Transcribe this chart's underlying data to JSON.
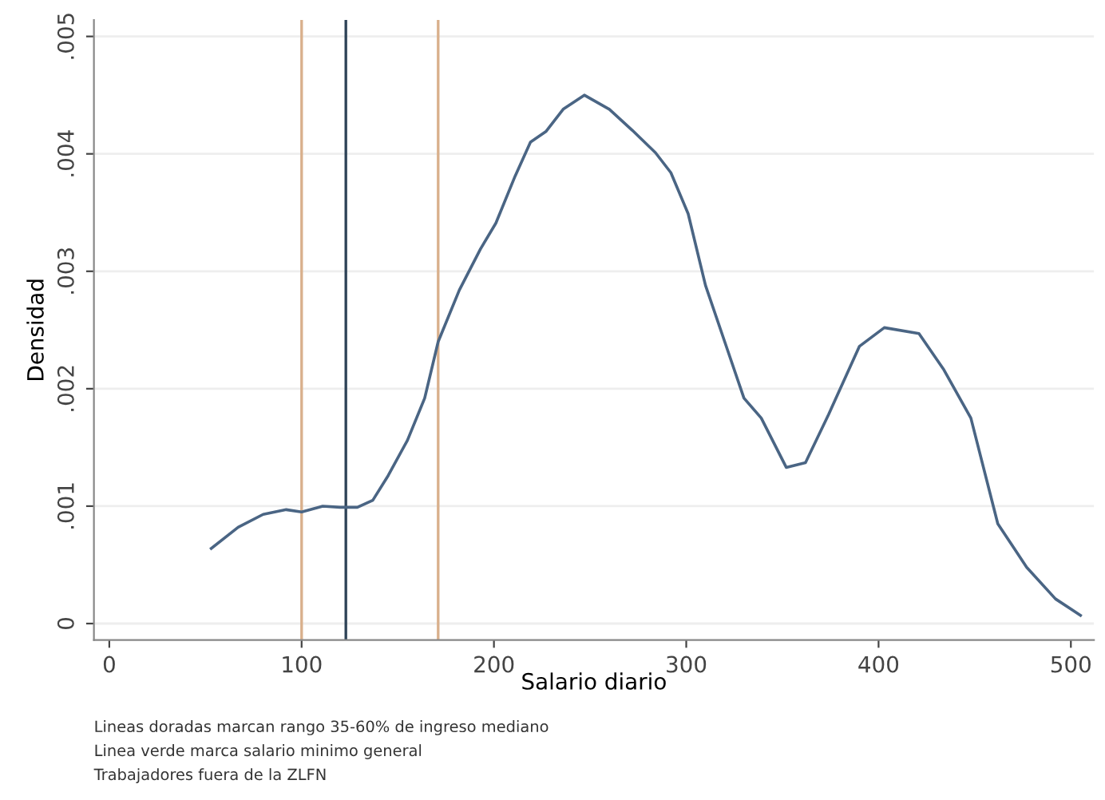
{
  "chart_data": {
    "type": "line",
    "xlabel": "Salario diario",
    "ylabel": "Densidad",
    "x": [
      53,
      67,
      80,
      92,
      100,
      111,
      120,
      129,
      137,
      145,
      155,
      164,
      171,
      182,
      193,
      201,
      211,
      219,
      227,
      236,
      247,
      260,
      272,
      284,
      292,
      301,
      310,
      320,
      330,
      339,
      352,
      362,
      374,
      390,
      403,
      421,
      434,
      448,
      462,
      477,
      492,
      505
    ],
    "series": [
      {
        "color": "#4a6584",
        "values": [
          0.00064,
          0.00082,
          0.00093,
          0.00097,
          0.00095,
          0.001,
          0.00099,
          0.00099,
          0.00105,
          0.00126,
          0.00156,
          0.00192,
          0.0024,
          0.00284,
          0.00319,
          0.00341,
          0.00381,
          0.0041,
          0.00419,
          0.00438,
          0.0045,
          0.00438,
          0.0042,
          0.00401,
          0.00384,
          0.00349,
          0.00288,
          0.0024,
          0.00192,
          0.00175,
          0.00133,
          0.00137,
          0.00178,
          0.00236,
          0.00252,
          0.00247,
          0.00216,
          0.00175,
          0.00085,
          0.00048,
          0.00021,
          7e-05
        ]
      }
    ],
    "xlim": [
      -8,
      512
    ],
    "xticks": [
      0,
      100,
      200,
      300,
      400,
      500
    ],
    "ylim": [
      -0.00014,
      0.00514
    ],
    "yticks": [
      {
        "value": 0,
        "label": "0"
      },
      {
        "value": 0.001,
        "label": ".001"
      },
      {
        "value": 0.002,
        "label": ".002"
      },
      {
        "value": 0.003,
        "label": ".003"
      },
      {
        "value": 0.004,
        "label": ".004"
      },
      {
        "value": 0.005,
        "label": ".005"
      }
    ],
    "grid": "y",
    "ref_lines": [
      {
        "axis": "x",
        "value": 100,
        "color": "#d9b08c"
      },
      {
        "axis": "x",
        "value": 123,
        "color": "#2e4357"
      },
      {
        "axis": "x",
        "value": 171,
        "color": "#d9b08c"
      }
    ],
    "annotations": [
      "Lineas doradas marcan rango 35-60% de ingreso mediano",
      "Linea verde marca salario minimo general",
      "Trabajadores fuera de la ZLFN"
    ]
  }
}
